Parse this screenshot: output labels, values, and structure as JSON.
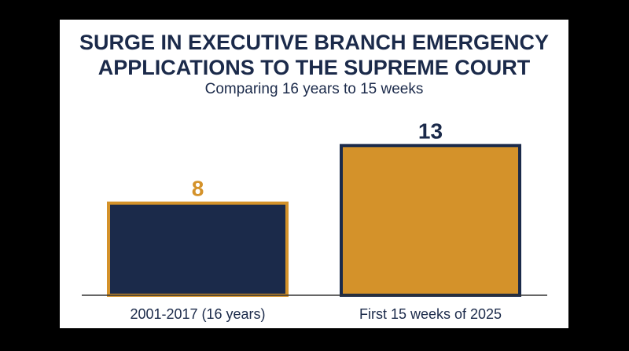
{
  "chart_data": {
    "type": "bar",
    "title_lines": [
      "SURGE IN EXECUTIVE BRANCH EMERGENCY",
      "APPLICATIONS TO THE SUPREME COURT"
    ],
    "subtitle": "Comparing 16 years to 15 weeks",
    "categories": [
      "2001-2017 (16 years)",
      "First 15 weeks of 2025"
    ],
    "values": [
      8,
      13
    ],
    "data_labels": [
      "8",
      "13"
    ],
    "ylim": [
      0,
      13.5
    ],
    "grid": false,
    "legend": "none",
    "colors": {
      "navy": "#1b2a4a",
      "gold": "#d4922a",
      "axis": "#333333"
    }
  }
}
